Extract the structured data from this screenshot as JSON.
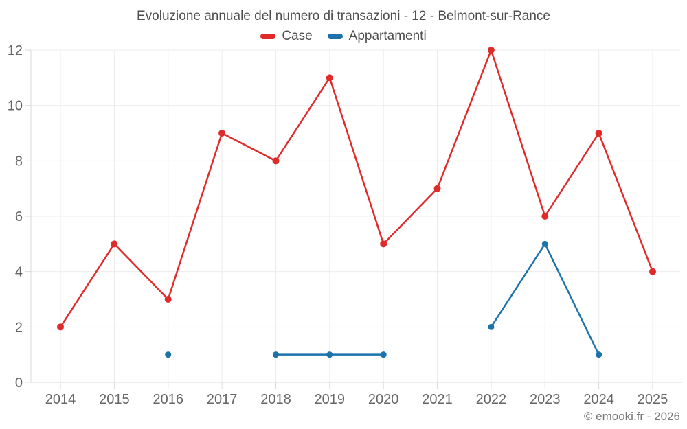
{
  "page": {
    "title": "Evoluzione annuale del numero di transazioni - 12 - Belmont-sur-Rance",
    "footer": "© emooki.fr - 2026"
  },
  "legend": {
    "items": [
      {
        "label": "Case",
        "color": "#e02b2b"
      },
      {
        "label": "Appartamenti",
        "color": "#1c72ab"
      }
    ]
  },
  "chart_data": {
    "type": "line",
    "title": "Evoluzione annuale del numero di transazioni - 12 - Belmont-sur-Rance",
    "categories": [
      "2014",
      "2015",
      "2016",
      "2017",
      "2018",
      "2019",
      "2020",
      "2021",
      "2022",
      "2023",
      "2024",
      "2025"
    ],
    "series": [
      {
        "name": "Case",
        "color": "#e02b2b",
        "marker_radius": 5,
        "values": [
          2,
          5,
          3,
          9,
          8,
          11,
          5,
          7,
          12,
          6,
          9,
          4
        ]
      },
      {
        "name": "Appartamenti",
        "color": "#1c72ab",
        "marker_radius": 4.5,
        "values": [
          null,
          null,
          1,
          null,
          1,
          1,
          1,
          null,
          2,
          5,
          1,
          null
        ]
      }
    ],
    "xlabel": "",
    "ylabel": "",
    "ylim": [
      0,
      12
    ],
    "yticks": [
      0,
      2,
      4,
      6,
      8,
      10,
      12
    ],
    "grid": true,
    "legend_position": "top",
    "line_width": 2.5,
    "grid_color": "#ececec",
    "axis_color": "#d9d9d9",
    "tick_label_color": "#666666"
  }
}
